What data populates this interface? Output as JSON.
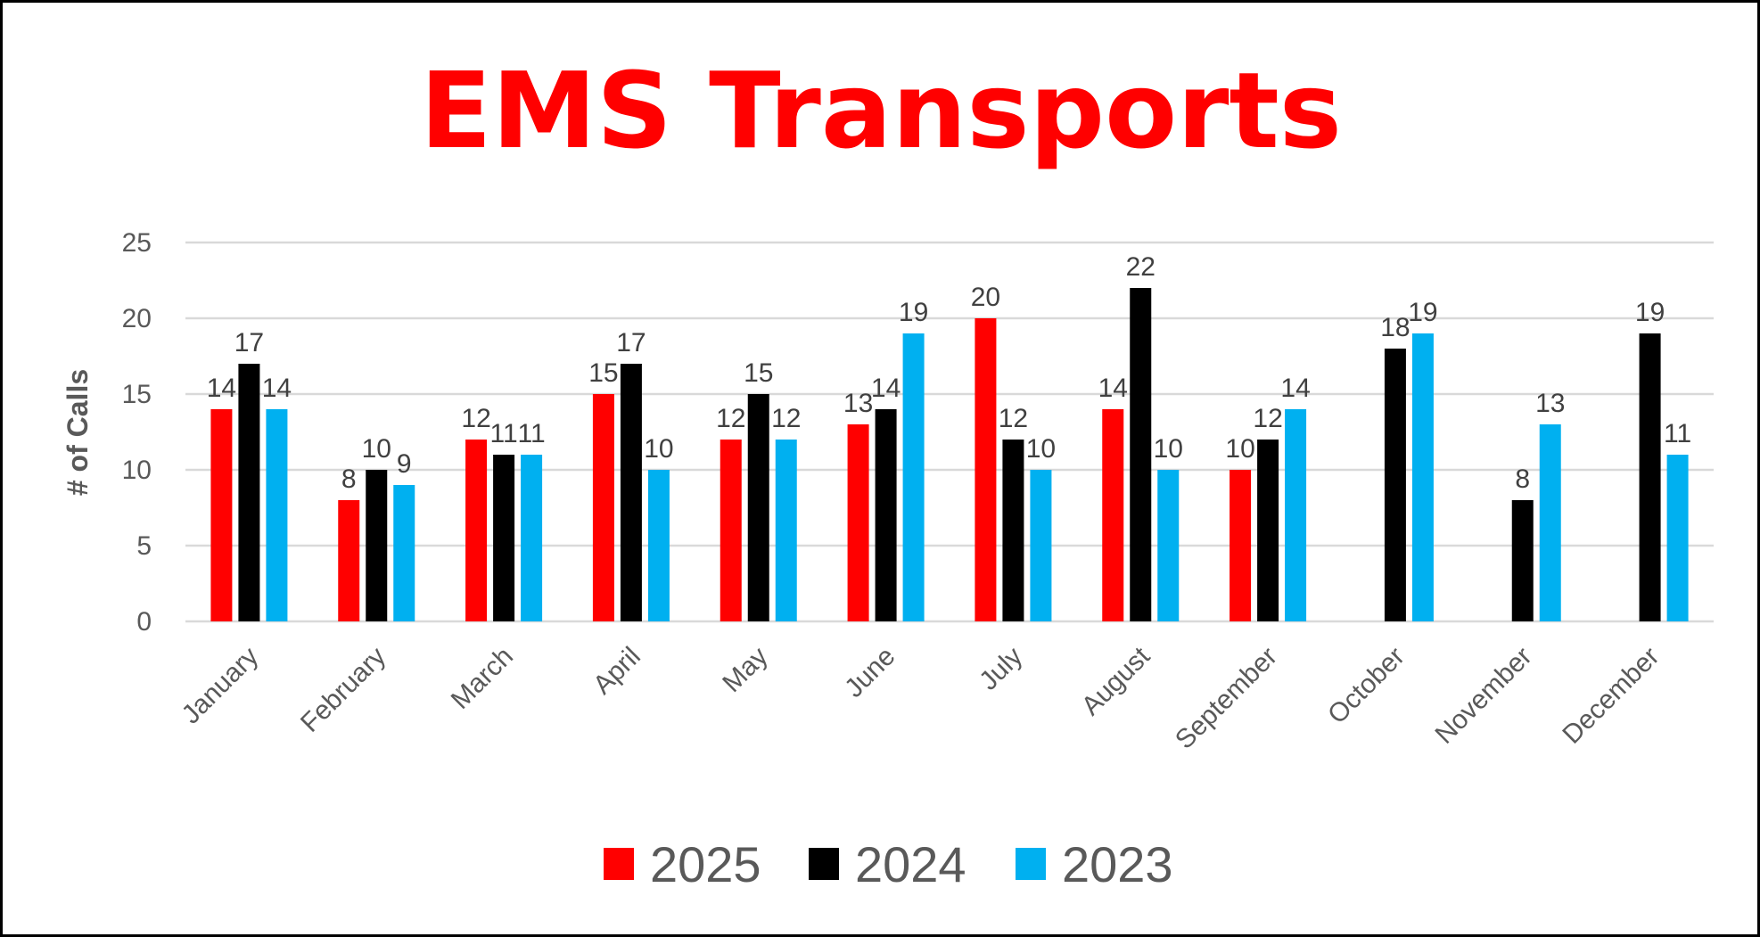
{
  "chart_data": {
    "type": "bar",
    "title": "EMS Transports",
    "xlabel": "",
    "ylabel": "# of Calls",
    "ylim": [
      0,
      25
    ],
    "yticks": [
      0,
      5,
      10,
      15,
      20,
      25
    ],
    "grid": true,
    "legend_position": "bottom",
    "categories": [
      "January",
      "February",
      "March",
      "April",
      "May",
      "June",
      "July",
      "August",
      "September",
      "October",
      "November",
      "December"
    ],
    "series": [
      {
        "name": "2025",
        "color": "#FF0000",
        "values": [
          14,
          8,
          12,
          15,
          12,
          13,
          20,
          14,
          10,
          null,
          null,
          null
        ]
      },
      {
        "name": "2024",
        "color": "#000000",
        "values": [
          17,
          10,
          11,
          17,
          15,
          14,
          12,
          22,
          12,
          18,
          8,
          19
        ]
      },
      {
        "name": "2023",
        "color": "#00B0F0",
        "values": [
          14,
          9,
          11,
          10,
          12,
          19,
          10,
          10,
          14,
          19,
          13,
          11
        ]
      }
    ],
    "title_color": "#FF0000",
    "gridline_color": "#D9D9D9"
  }
}
